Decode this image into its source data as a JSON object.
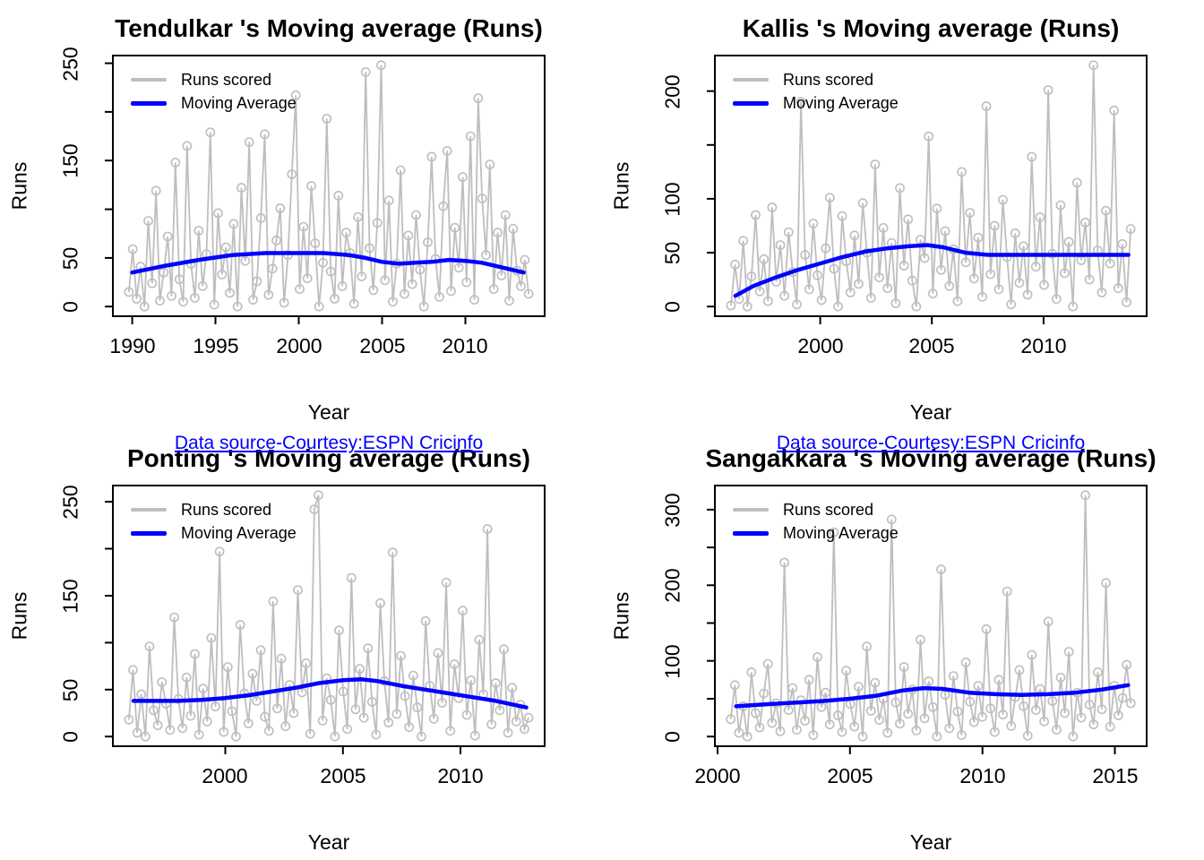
{
  "figure": {
    "background": "#FFFFFF"
  },
  "colors": {
    "runs_series": "#BEBEBE",
    "moving_average": "#0000FF",
    "caption_text": "#0000FF",
    "axis": "#000000",
    "text": "#000000"
  },
  "chart_data": {
    "type": "line",
    "layout": "2x2-grid",
    "grid": false,
    "legend_position": "top-left-inside",
    "panels": [
      {
        "id": "tendulkar",
        "title": "Tendulkar 's Moving average (Runs)",
        "xlabel": "Year",
        "ylabel": "Runs",
        "caption": "Data source-Courtesy:ESPN Cricinfo",
        "legend": [
          "Runs scored",
          "Moving Average"
        ],
        "xlim": [
          1988.84,
          2014.76
        ],
        "ylim": [
          -9.9,
          257.9
        ],
        "xticks": [
          1990,
          1995,
          2000,
          2005,
          2010
        ],
        "yticks": [
          0,
          50,
          100,
          150,
          200,
          250
        ],
        "ytick_labels": [
          0,
          50,
          150,
          250
        ],
        "x_start": 1989.8,
        "x_end": 2013.8,
        "scores": [
          15,
          59,
          8,
          41,
          0,
          88,
          24,
          119,
          6,
          35,
          72,
          11,
          148,
          28,
          5,
          165,
          44,
          9,
          78,
          21,
          54,
          179,
          2,
          96,
          33,
          61,
          14,
          85,
          0,
          122,
          47,
          169,
          7,
          26,
          91,
          177,
          12,
          39,
          68,
          101,
          4,
          53,
          136,
          217,
          18,
          82,
          29,
          124,
          65,
          0,
          45,
          193,
          36,
          8,
          114,
          21,
          76,
          55,
          3,
          92,
          31,
          241,
          60,
          17,
          86,
          248,
          27,
          109,
          5,
          44,
          140,
          13,
          73,
          23,
          94,
          38,
          0,
          66,
          154,
          49,
          10,
          103,
          160,
          16,
          81,
          40,
          133,
          25,
          175,
          7,
          214,
          111,
          53,
          146,
          18,
          76,
          32,
          94,
          6,
          80,
          37,
          21,
          48,
          13
        ],
        "moving_average": [
          [
            1990,
            35
          ],
          [
            1992,
            42
          ],
          [
            1994,
            48
          ],
          [
            1996,
            53
          ],
          [
            1998,
            55
          ],
          [
            2000,
            55
          ],
          [
            2001.5,
            55
          ],
          [
            2003,
            53
          ],
          [
            2004,
            50
          ],
          [
            2005,
            46
          ],
          [
            2006,
            44
          ],
          [
            2007,
            45
          ],
          [
            2008,
            46
          ],
          [
            2009,
            48
          ],
          [
            2010,
            47
          ],
          [
            2011,
            45
          ],
          [
            2012,
            41
          ],
          [
            2013.5,
            35
          ]
        ]
      },
      {
        "id": "kallis",
        "title": "Kallis 's Moving average (Runs)",
        "xlabel": "Year",
        "ylabel": "Runs",
        "caption": "Data source-Courtesy:ESPN Cricinfo",
        "legend": [
          "Runs scored",
          "Moving Average"
        ],
        "xlim": [
          1995.28,
          2014.62
        ],
        "ylim": [
          -9.0,
          233.0
        ],
        "xticks": [
          2000,
          2005,
          2010
        ],
        "yticks": [
          0,
          50,
          100,
          150,
          200
        ],
        "ytick_labels": [
          0,
          50,
          100,
          200
        ],
        "x_start": 1996.0,
        "x_end": 2013.9,
        "scores": [
          1,
          39,
          7,
          61,
          0,
          28,
          85,
          14,
          44,
          5,
          92,
          23,
          57,
          10,
          69,
          32,
          2,
          190,
          48,
          16,
          77,
          29,
          6,
          54,
          101,
          35,
          0,
          84,
          42,
          13,
          66,
          21,
          96,
          50,
          8,
          132,
          27,
          73,
          17,
          59,
          3,
          110,
          38,
          81,
          24,
          0,
          62,
          45,
          158,
          12,
          91,
          34,
          70,
          19,
          53,
          5,
          125,
          41,
          87,
          26,
          64,
          9,
          186,
          30,
          75,
          16,
          99,
          46,
          2,
          68,
          22,
          56,
          11,
          139,
          37,
          83,
          20,
          201,
          49,
          7,
          94,
          31,
          60,
          0,
          115,
          43,
          78,
          25,
          224,
          52,
          13,
          89,
          40,
          182,
          17,
          58,
          4,
          72
        ],
        "moving_average": [
          [
            1996.2,
            10
          ],
          [
            1997,
            19
          ],
          [
            1998,
            27
          ],
          [
            1999,
            34
          ],
          [
            2000,
            40
          ],
          [
            2001,
            46
          ],
          [
            2002,
            51
          ],
          [
            2003,
            54
          ],
          [
            2004,
            56
          ],
          [
            2004.8,
            57
          ],
          [
            2005.5,
            55
          ],
          [
            2006.5,
            50
          ],
          [
            2007.5,
            48
          ],
          [
            2009,
            48
          ],
          [
            2011,
            48
          ],
          [
            2013.8,
            48
          ]
        ]
      },
      {
        "id": "ponting",
        "title": "Ponting 's Moving average (Runs)",
        "xlabel": "Year",
        "ylabel": "Runs",
        "caption": "Data source-Courtesy:ESPN Cricinfo",
        "legend": [
          "Runs scored",
          "Moving Average"
        ],
        "xlim": [
          1995.22,
          2013.58
        ],
        "ylim": [
          -10.3,
          267.3
        ],
        "xticks": [
          2000,
          2005,
          2010
        ],
        "yticks": [
          0,
          50,
          100,
          150,
          200,
          250
        ],
        "ytick_labels": [
          0,
          50,
          150,
          250
        ],
        "x_start": 1995.9,
        "x_end": 2012.9,
        "scores": [
          18,
          71,
          4,
          45,
          0,
          96,
          28,
          12,
          58,
          35,
          7,
          127,
          40,
          9,
          63,
          22,
          88,
          2,
          51,
          16,
          105,
          32,
          197,
          5,
          74,
          27,
          0,
          119,
          46,
          14,
          67,
          38,
          92,
          21,
          6,
          144,
          30,
          83,
          11,
          55,
          25,
          156,
          47,
          78,
          3,
          242,
          257,
          17,
          62,
          39,
          0,
          113,
          48,
          8,
          169,
          29,
          72,
          20,
          94,
          37,
          2,
          142,
          59,
          15,
          196,
          24,
          86,
          43,
          10,
          65,
          31,
          0,
          123,
          54,
          19,
          89,
          36,
          164,
          6,
          77,
          41,
          134,
          23,
          60,
          1,
          103,
          45,
          221,
          13,
          57,
          28,
          93,
          4,
          52,
          16,
          34,
          8,
          20
        ],
        "moving_average": [
          [
            1996.1,
            38
          ],
          [
            1997,
            38
          ],
          [
            1998,
            38
          ],
          [
            1999,
            39
          ],
          [
            2000,
            41
          ],
          [
            2001,
            44
          ],
          [
            2002,
            48
          ],
          [
            2003,
            52
          ],
          [
            2004,
            57
          ],
          [
            2005,
            60
          ],
          [
            2005.8,
            61
          ],
          [
            2006.5,
            59
          ],
          [
            2007.5,
            54
          ],
          [
            2008.5,
            50
          ],
          [
            2009.5,
            46
          ],
          [
            2010.5,
            42
          ],
          [
            2011.5,
            38
          ],
          [
            2012.8,
            31
          ]
        ]
      },
      {
        "id": "sangakkara",
        "title": "Sangakkara 's Moving average (Runs)",
        "xlabel": "Year",
        "ylabel": "Runs",
        "caption": "Data source-Courtesy:ESPN Cricinfo",
        "legend": [
          "Runs scored",
          "Moving Average"
        ],
        "xlim": [
          1999.9,
          2016.2
        ],
        "ylim": [
          -12.8,
          331.8
        ],
        "xticks": [
          2000,
          2005,
          2010,
          2015
        ],
        "yticks": [
          0,
          50,
          100,
          150,
          200,
          250,
          300
        ],
        "ytick_labels": [
          0,
          100,
          200,
          300
        ],
        "x_start": 2000.5,
        "x_end": 2015.6,
        "scores": [
          23,
          68,
          5,
          40,
          0,
          85,
          31,
          12,
          57,
          96,
          18,
          44,
          7,
          230,
          35,
          64,
          9,
          48,
          21,
          75,
          2,
          105,
          39,
          58,
          16,
          270,
          28,
          6,
          87,
          43,
          13,
          66,
          0,
          119,
          34,
          71,
          22,
          50,
          5,
          287,
          45,
          17,
          92,
          30,
          62,
          8,
          128,
          24,
          73,
          39,
          0,
          221,
          55,
          11,
          80,
          33,
          2,
          98,
          46,
          19,
          67,
          26,
          142,
          37,
          6,
          75,
          29,
          192,
          14,
          52,
          88,
          40,
          1,
          108,
          35,
          63,
          20,
          152,
          47,
          9,
          78,
          31,
          112,
          0,
          58,
          25,
          319,
          42,
          16,
          85,
          36,
          203,
          13,
          67,
          28,
          51,
          95,
          44
        ],
        "moving_average": [
          [
            2000.7,
            40
          ],
          [
            2002,
            43
          ],
          [
            2003,
            45
          ],
          [
            2004,
            47
          ],
          [
            2005,
            50
          ],
          [
            2006,
            54
          ],
          [
            2007,
            61
          ],
          [
            2007.8,
            64
          ],
          [
            2008.5,
            63
          ],
          [
            2009.5,
            58
          ],
          [
            2010.5,
            56
          ],
          [
            2011.5,
            55
          ],
          [
            2012.5,
            56
          ],
          [
            2013.5,
            58
          ],
          [
            2014.5,
            62
          ],
          [
            2015.5,
            68
          ]
        ]
      }
    ]
  }
}
